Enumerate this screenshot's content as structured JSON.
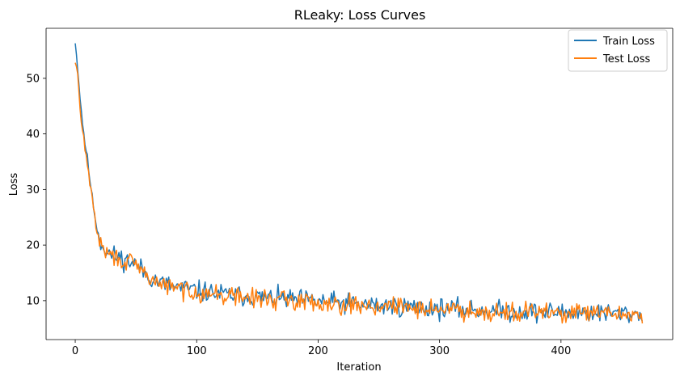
{
  "chart_data": {
    "type": "line",
    "title": "RLeaky: Loss Curves",
    "xlabel": "Iteration",
    "ylabel": "Loss",
    "xlim": [
      -24,
      492
    ],
    "ylim": [
      3.0,
      59.0
    ],
    "xticks": [
      0,
      100,
      200,
      300,
      400
    ],
    "yticks": [
      10,
      20,
      30,
      40,
      50
    ],
    "grid": false,
    "legend_position": "top-right",
    "x_count": 468,
    "series": [
      {
        "name": "Train Loss",
        "color": "#1f77b4",
        "anchors": [
          [
            0,
            56.3
          ],
          [
            2,
            52.0
          ],
          [
            4,
            46.5
          ],
          [
            6,
            42.0
          ],
          [
            8,
            38.5
          ],
          [
            10,
            35.5
          ],
          [
            12,
            32.0
          ],
          [
            14,
            28.5
          ],
          [
            16,
            25.5
          ],
          [
            18,
            23.0
          ],
          [
            20,
            21.0
          ],
          [
            25,
            19.0
          ],
          [
            30,
            18.2
          ],
          [
            40,
            17.5
          ],
          [
            50,
            16.5
          ],
          [
            60,
            14.5
          ],
          [
            70,
            13.2
          ],
          [
            80,
            12.6
          ],
          [
            100,
            11.8
          ],
          [
            120,
            11.2
          ],
          [
            150,
            10.6
          ],
          [
            180,
            10.2
          ],
          [
            200,
            9.9
          ],
          [
            250,
            9.1
          ],
          [
            300,
            8.6
          ],
          [
            350,
            8.1
          ],
          [
            400,
            7.9
          ],
          [
            467,
            7.6
          ]
        ],
        "noise": 1.7,
        "seed": 11
      },
      {
        "name": "Test Loss",
        "color": "#ff7f0e",
        "anchors": [
          [
            0,
            52.8
          ],
          [
            2,
            51.0
          ],
          [
            4,
            44.0
          ],
          [
            6,
            41.0
          ],
          [
            8,
            37.5
          ],
          [
            10,
            34.5
          ],
          [
            12,
            31.5
          ],
          [
            14,
            28.0
          ],
          [
            16,
            25.0
          ],
          [
            18,
            22.5
          ],
          [
            20,
            20.5
          ],
          [
            25,
            18.8
          ],
          [
            30,
            18.0
          ],
          [
            40,
            17.2
          ],
          [
            50,
            16.2
          ],
          [
            60,
            14.3
          ],
          [
            70,
            13.0
          ],
          [
            80,
            12.4
          ],
          [
            100,
            11.6
          ],
          [
            120,
            11.0
          ],
          [
            150,
            10.4
          ],
          [
            180,
            10.0
          ],
          [
            200,
            9.7
          ],
          [
            250,
            9.0
          ],
          [
            300,
            8.5
          ],
          [
            350,
            8.0
          ],
          [
            400,
            7.8
          ],
          [
            467,
            7.5
          ]
        ],
        "noise": 1.6,
        "seed": 29
      }
    ]
  }
}
